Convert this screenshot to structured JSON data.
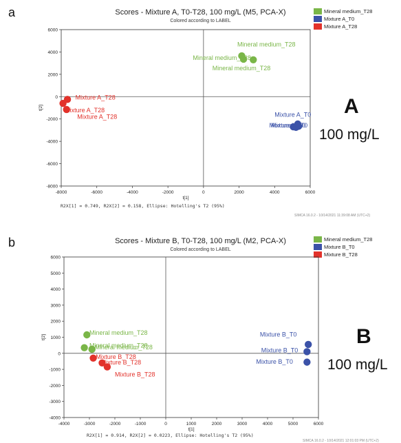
{
  "panels": {
    "a": {
      "letter": "a",
      "title": "Scores - Mixture A, T0-T28, 100 mg/L (M5, PCA-X)",
      "subtitle": "Colored according to LABEL",
      "big_letter": "A",
      "big_conc": "100 mg/L",
      "footer": "R2X[1] = 0.749, R2X[2] = 0.158, Ellipse: Hotelling's T2 (95%)",
      "stamp": "SIMCA 16.0.2 - 10/14/2021 11:39:08 AM (UTC+2)",
      "legend": [
        {
          "label": "Mineral medium_T28",
          "color": "#7ab648"
        },
        {
          "label": "Mixture A_T0",
          "color": "#3b52a8"
        },
        {
          "label": "Mixture A_T28",
          "color": "#e2322b"
        }
      ]
    },
    "b": {
      "letter": "b",
      "title": "Scores - Mixture B, T0-T28, 100 mg/L (M2, PCA-X)",
      "subtitle": "Colored according to LABEL",
      "big_letter": "B",
      "big_conc": "100 mg/L",
      "footer": "R2X[1] = 0.914, R2X[2] = 0.0223, Ellipse: Hotelling's T2 (95%)",
      "stamp": "SIMCA 16.0.2 - 10/14/2021 12:01:03 PM (UTC+2)",
      "legend": [
        {
          "label": "Mineral medium_T28",
          "color": "#7ab648"
        },
        {
          "label": "Mixture B_T0",
          "color": "#3b52a8"
        },
        {
          "label": "Mixture B_T28",
          "color": "#e2322b"
        }
      ]
    }
  },
  "chart_data": [
    {
      "type": "scatter",
      "title": "Scores - Mixture A, T0-T28, 100 mg/L (M5, PCA-X)",
      "subtitle": "Colored according to LABEL",
      "xlabel": "t[1]",
      "ylabel": "t[2]",
      "xlim": [
        -8000,
        6000
      ],
      "ylim": [
        -8000,
        6000
      ],
      "xticks": [
        -8000,
        -6000,
        -4000,
        -2000,
        0,
        2000,
        4000,
        6000
      ],
      "yticks": [
        -8000,
        -6000,
        -4000,
        -2000,
        0,
        2000,
        4000,
        6000
      ],
      "legend_position": "top-right",
      "series": [
        {
          "name": "Mineral medium_T28",
          "color": "#7ab648",
          "points": [
            {
              "x": 2150,
              "y": 3650
            },
            {
              "x": 2250,
              "y": 3350
            },
            {
              "x": 2800,
              "y": 3300
            }
          ]
        },
        {
          "name": "Mixture A_T0",
          "color": "#3b52a8",
          "points": [
            {
              "x": 5300,
              "y": -2450
            },
            {
              "x": 5050,
              "y": -2700
            },
            {
              "x": 5200,
              "y": -2750
            },
            {
              "x": 5350,
              "y": -2650
            }
          ]
        },
        {
          "name": "Mixture A_T28",
          "color": "#e2322b",
          "points": [
            {
              "x": -7650,
              "y": -250
            },
            {
              "x": -7900,
              "y": -600
            },
            {
              "x": -7700,
              "y": -1150
            }
          ]
        }
      ],
      "annotations": [
        {
          "text": "Mineral medium_T28",
          "x": 1900,
          "y": 4500,
          "color": "#7ab648"
        },
        {
          "text": "Mineral medium_T28",
          "x": -600,
          "y": 3300,
          "color": "#7ab648"
        },
        {
          "text": "Mineral medium_T28",
          "x": 500,
          "y": 2350,
          "color": "#7ab648"
        },
        {
          "text": "Mixture A_T0",
          "x": 4000,
          "y": -1800,
          "color": "#3b52a8"
        },
        {
          "text": "Mixture A_T0",
          "x": 3700,
          "y": -2750,
          "color": "#3b52a8"
        },
        {
          "text": "Mixture A_T0",
          "x": 3800,
          "y": -2750,
          "color": "#3b52a8"
        },
        {
          "text": "Mixture A_T28",
          "x": -7200,
          "y": -250,
          "color": "#e2322b"
        },
        {
          "text": "Mixture A_T28",
          "x": -7800,
          "y": -1400,
          "color": "#e2322b"
        },
        {
          "text": "Mixture A_T28",
          "x": -7100,
          "y": -2000,
          "color": "#e2322b"
        }
      ]
    },
    {
      "type": "scatter",
      "title": "Scores - Mixture B, T0-T28, 100 mg/L (M2, PCA-X)",
      "subtitle": "Colored according to LABEL",
      "xlabel": "t[1]",
      "ylabel": "t[2]",
      "xlim": [
        -4000,
        6000
      ],
      "ylim": [
        -4000,
        6000
      ],
      "xticks": [
        -4000,
        -3000,
        -2000,
        -1000,
        0,
        1000,
        2000,
        3000,
        4000,
        5000,
        6000
      ],
      "yticks": [
        -4000,
        -3000,
        -2000,
        -1000,
        0,
        1000,
        2000,
        3000,
        4000,
        5000,
        6000
      ],
      "legend_position": "top-right",
      "series": [
        {
          "name": "Mineral medium_T28",
          "color": "#7ab648",
          "points": [
            {
              "x": -3100,
              "y": 1150
            },
            {
              "x": -3200,
              "y": 350
            },
            {
              "x": -2900,
              "y": 250
            }
          ]
        },
        {
          "name": "Mixture B_T0",
          "color": "#3b52a8",
          "points": [
            {
              "x": 5600,
              "y": 550
            },
            {
              "x": 5550,
              "y": 100
            },
            {
              "x": 5550,
              "y": -550
            }
          ]
        },
        {
          "name": "Mixture B_T28",
          "color": "#e2322b",
          "points": [
            {
              "x": -2850,
              "y": -300
            },
            {
              "x": -2500,
              "y": -600
            },
            {
              "x": -2300,
              "y": -850
            }
          ]
        }
      ],
      "annotations": [
        {
          "text": "Mineral medium_T28",
          "x": -3000,
          "y": 1150,
          "color": "#7ab648"
        },
        {
          "text": "Mineral medium_T28",
          "x": -3000,
          "y": 350,
          "color": "#7ab648"
        },
        {
          "text": "Mineral medium_T28",
          "x": -2800,
          "y": 250,
          "color": "#7ab648"
        },
        {
          "text": "Mixture B_T0",
          "x": 3700,
          "y": 1050,
          "color": "#3b52a8"
        },
        {
          "text": "Mixture B_T0",
          "x": 3750,
          "y": 50,
          "color": "#3b52a8"
        },
        {
          "text": "Mixture B_T0",
          "x": 3550,
          "y": -650,
          "color": "#3b52a8"
        },
        {
          "text": "Mixture B_T28",
          "x": -2750,
          "y": -350,
          "color": "#e2322b"
        },
        {
          "text": "Mixture B_T28",
          "x": -2550,
          "y": -700,
          "color": "#e2322b"
        },
        {
          "text": "Mixture B_T28",
          "x": -2000,
          "y": -1450,
          "color": "#e2322b"
        }
      ]
    }
  ]
}
